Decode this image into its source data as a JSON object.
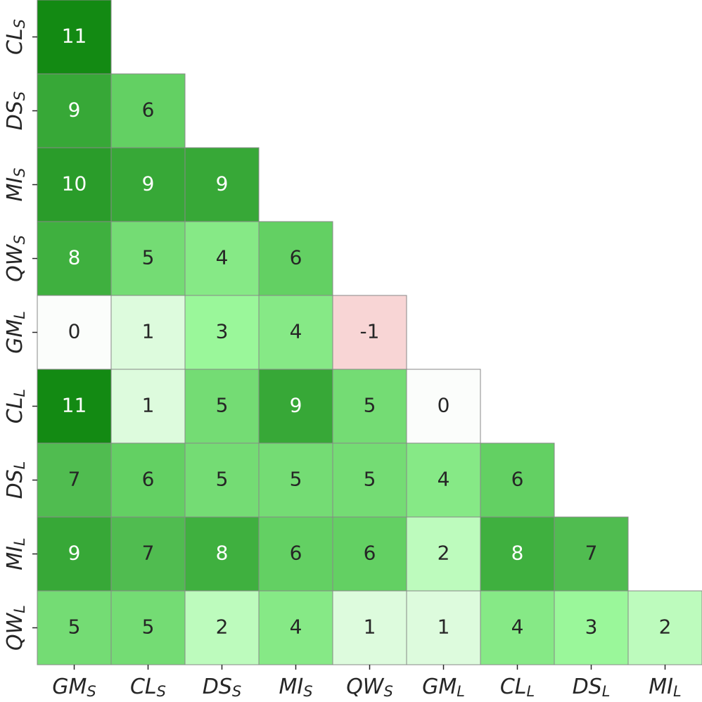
{
  "chart_data": {
    "type": "heatmap",
    "x_labels": [
      {
        "text": "GM",
        "sub": "S"
      },
      {
        "text": "CL",
        "sub": "S"
      },
      {
        "text": "DS",
        "sub": "S"
      },
      {
        "text": "MI",
        "sub": "S"
      },
      {
        "text": "QW",
        "sub": "S"
      },
      {
        "text": "GM",
        "sub": "L"
      },
      {
        "text": "CL",
        "sub": "L"
      },
      {
        "text": "DS",
        "sub": "L"
      },
      {
        "text": "MI",
        "sub": "L"
      }
    ],
    "y_labels": [
      {
        "text": "CL",
        "sub": "S"
      },
      {
        "text": "DS",
        "sub": "S"
      },
      {
        "text": "MI",
        "sub": "S"
      },
      {
        "text": "QW",
        "sub": "S"
      },
      {
        "text": "GM",
        "sub": "L"
      },
      {
        "text": "CL",
        "sub": "L"
      },
      {
        "text": "DS",
        "sub": "L"
      },
      {
        "text": "MI",
        "sub": "L"
      },
      {
        "text": "QW",
        "sub": "L"
      }
    ],
    "values": [
      [
        11
      ],
      [
        9,
        6
      ],
      [
        10,
        9,
        9
      ],
      [
        8,
        5,
        4,
        6
      ],
      [
        0,
        1,
        3,
        4,
        -1
      ],
      [
        11,
        1,
        5,
        9,
        5,
        0
      ],
      [
        7,
        6,
        5,
        5,
        5,
        4,
        6
      ],
      [
        9,
        7,
        8,
        6,
        6,
        2,
        8,
        7
      ],
      [
        5,
        5,
        2,
        4,
        1,
        1,
        4,
        3,
        2
      ]
    ],
    "color_scale": {
      "-1": "#f8d5d5",
      "0": "#fbfdfb",
      "1": "#ddfbdd",
      "2": "#bdfbbd",
      "3": "#9af79a",
      "4": "#86e986",
      "5": "#74dc74",
      "6": "#63d063",
      "7": "#50bc50",
      "8": "#3fb03f",
      "9": "#37a837",
      "10": "#2a9c2a",
      "11": "#138a13"
    }
  }
}
